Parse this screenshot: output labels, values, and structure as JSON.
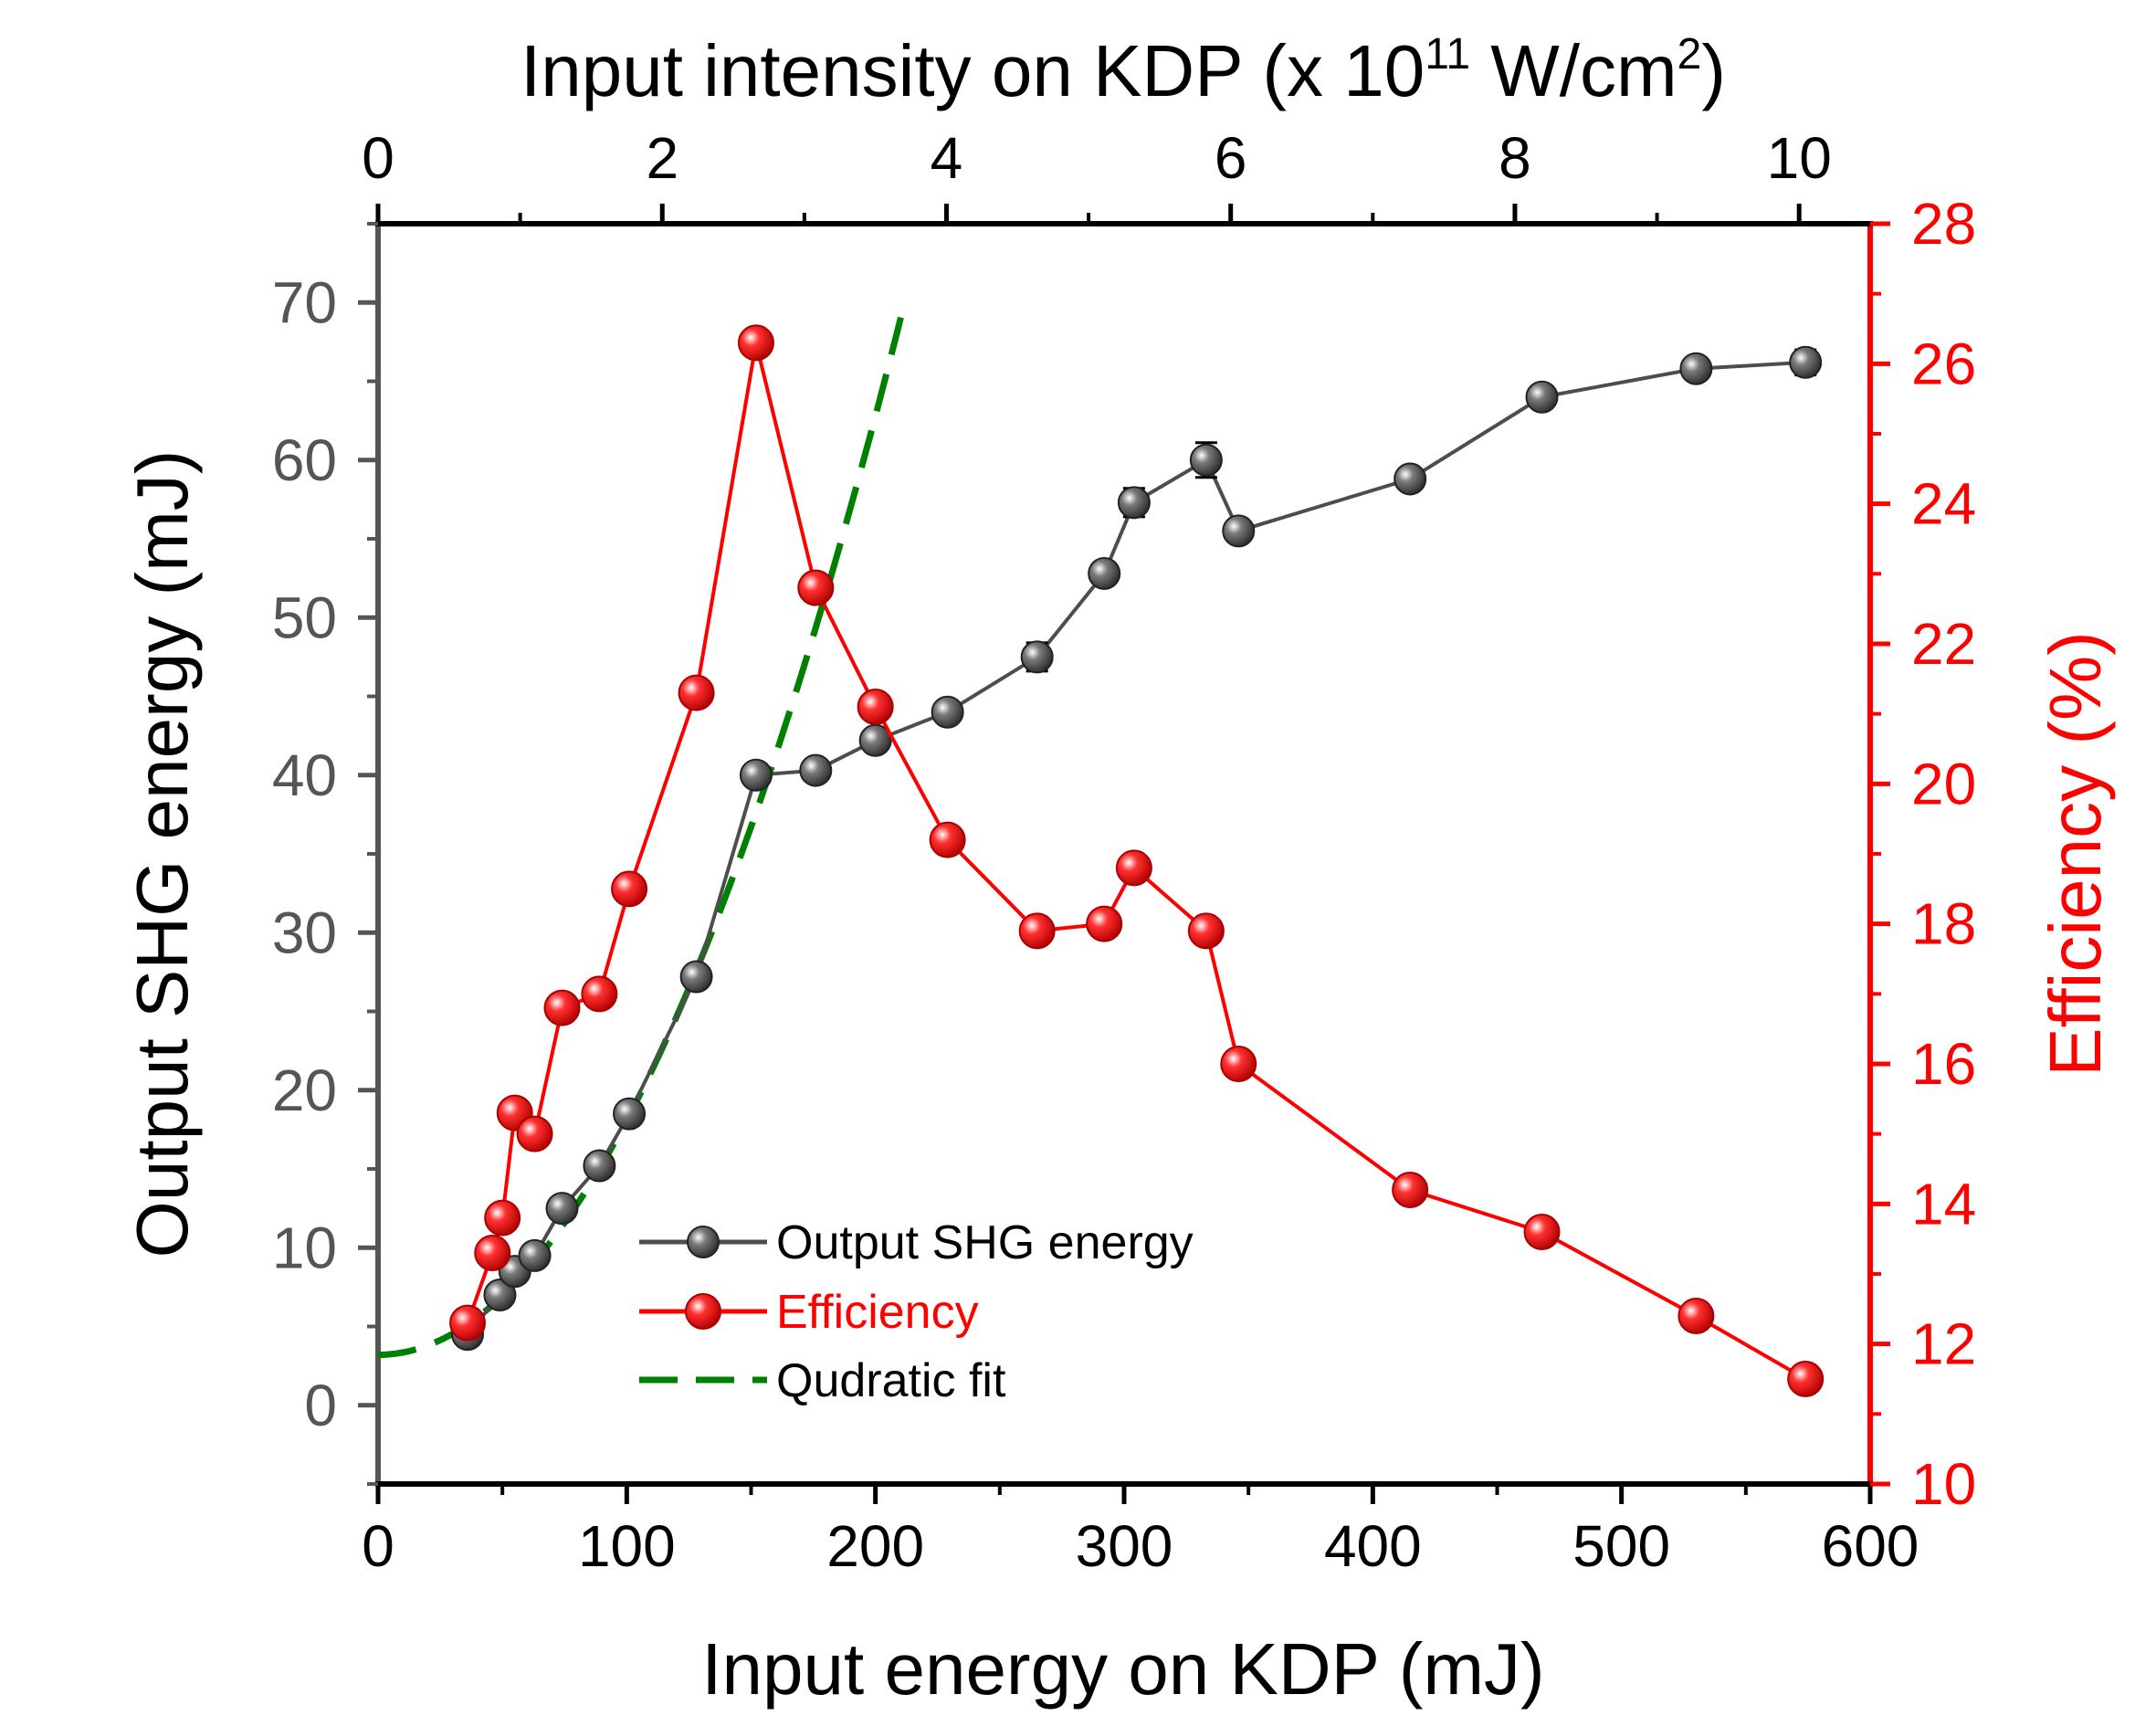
{
  "chart_data": {
    "type": "line",
    "xlabel": "Input energy on KDP (mJ)",
    "ylabel_left": "Output SHG energy (mJ)",
    "ylabel_right": "Efficiency (%)",
    "top_axis": {
      "label_main": "Input intensity on KDP (x 10",
      "label_exp1": "11",
      "label_mid": " W/cm",
      "label_exp2": "2",
      "label_end": ")",
      "range": [
        0,
        10.5
      ],
      "ticks": [
        0,
        2,
        4,
        6,
        8,
        10
      ],
      "tick_labels": [
        "0",
        "2",
        "4",
        "6",
        "8",
        "10"
      ]
    },
    "x_axis": {
      "range": [
        0,
        600
      ],
      "ticks": [
        0,
        100,
        200,
        300,
        400,
        500,
        600
      ],
      "tick_labels": [
        "0",
        "100",
        "200",
        "300",
        "400",
        "500",
        "600"
      ]
    },
    "y_left": {
      "range": [
        -5,
        75
      ],
      "ticks": [
        0,
        10,
        20,
        30,
        40,
        50,
        60,
        70
      ],
      "tick_labels": [
        "0",
        "10",
        "20",
        "30",
        "40",
        "50",
        "60",
        "70"
      ]
    },
    "y_right": {
      "range": [
        10,
        28
      ],
      "ticks": [
        10,
        12,
        14,
        16,
        18,
        20,
        22,
        24,
        26,
        28
      ],
      "tick_labels": [
        "10",
        "12",
        "14",
        "16",
        "18",
        "20",
        "22",
        "24",
        "26",
        "28"
      ]
    },
    "series": [
      {
        "name": "Output SHG energy",
        "axis": "left",
        "color": "#4d4d4d",
        "x": [
          36,
          49,
          55,
          63,
          74,
          89,
          101,
          128,
          152,
          176,
          200,
          229,
          265,
          292,
          304,
          333,
          346,
          415,
          468,
          530,
          574
        ],
        "y": [
          4.5,
          7.0,
          8.5,
          9.5,
          12.5,
          15.2,
          18.5,
          27.2,
          40.0,
          40.3,
          42.2,
          44.0,
          47.5,
          52.8,
          57.3,
          60.0,
          55.5,
          58.8,
          64.0,
          65.8,
          66.2
        ],
        "err": [
          0.3,
          0.3,
          0.3,
          0.3,
          0.3,
          0.4,
          0.4,
          0.5,
          0.5,
          0.5,
          0.5,
          0.6,
          0.9,
          0.7,
          0.9,
          1.1,
          0.6,
          0.6,
          0.7,
          0.5,
          0.8
        ]
      },
      {
        "name": "Efficiency",
        "axis": "right",
        "color": "#ff0000",
        "x": [
          36,
          46,
          50,
          55,
          63,
          74,
          89,
          101,
          128,
          152,
          176,
          200,
          229,
          265,
          292,
          304,
          333,
          346,
          415,
          468,
          530,
          574
        ],
        "y": [
          12.3,
          13.3,
          13.8,
          15.3,
          15.0,
          16.8,
          17.0,
          18.5,
          21.3,
          26.3,
          22.8,
          21.1,
          19.2,
          17.9,
          18.0,
          18.8,
          17.9,
          16.0,
          14.2,
          13.6,
          12.4,
          11.5
        ]
      },
      {
        "name": "Qudratic fit",
        "axis": "left",
        "color": "#008000",
        "style": "dashed",
        "x_range": [
          0,
          212
        ],
        "coefficients": {
          "a": 0.00149,
          "b": 0.0,
          "c": 3.2
        }
      }
    ],
    "legend": {
      "position": "bottom-center",
      "items": [
        "Output SHG energy",
        "Efficiency",
        "Qudratic fit"
      ]
    }
  }
}
